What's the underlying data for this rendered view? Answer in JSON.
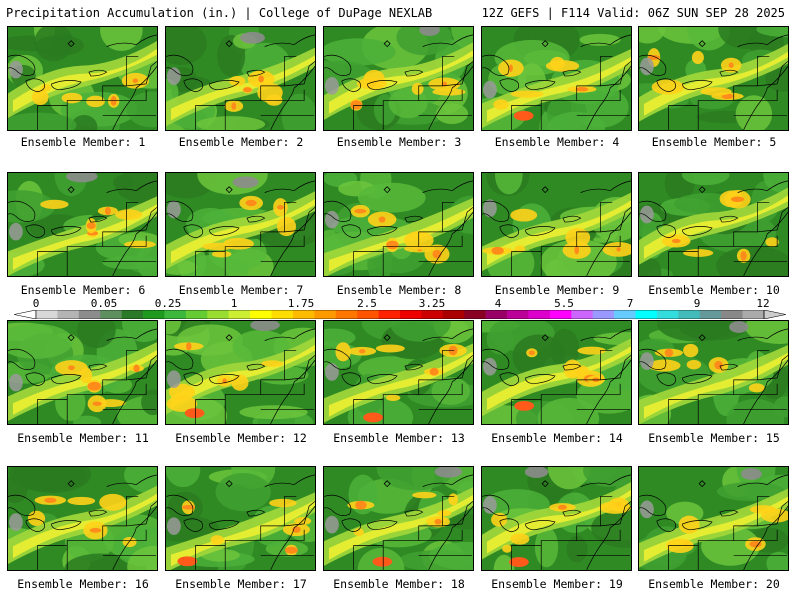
{
  "header": {
    "title": "Precipitation Accumulation (in.) | College of DuPage NEXLAB",
    "run_info": "12Z GEFS | F114 Valid: 06Z SUN SEP 28 2025"
  },
  "members": [
    {
      "label": "Ensemble Member: 1"
    },
    {
      "label": "Ensemble Member: 2"
    },
    {
      "label": "Ensemble Member: 3"
    },
    {
      "label": "Ensemble Member: 4"
    },
    {
      "label": "Ensemble Member: 5"
    },
    {
      "label": "Ensemble Member: 6"
    },
    {
      "label": "Ensemble Member: 7"
    },
    {
      "label": "Ensemble Member: 8"
    },
    {
      "label": "Ensemble Member: 9"
    },
    {
      "label": "Ensemble Member: 10"
    },
    {
      "label": "Ensemble Member: 11"
    },
    {
      "label": "Ensemble Member: 12"
    },
    {
      "label": "Ensemble Member: 13"
    },
    {
      "label": "Ensemble Member: 14"
    },
    {
      "label": "Ensemble Member: 15"
    },
    {
      "label": "Ensemble Member: 16"
    },
    {
      "label": "Ensemble Member: 17"
    },
    {
      "label": "Ensemble Member: 18"
    },
    {
      "label": "Ensemble Member: 19"
    },
    {
      "label": "Ensemble Member: 20"
    }
  ],
  "colorbar": {
    "ticks": [
      "0",
      "0.05",
      "0.25",
      "1",
      "1.75",
      "2.5",
      "3.25",
      "4",
      "5.5",
      "7",
      "9",
      "12"
    ],
    "colors": [
      "#ffffff",
      "#d8d8d8",
      "#b4b4b4",
      "#8c8c8c",
      "#5e8f5e",
      "#2a7a2a",
      "#1f9a1f",
      "#3cb83c",
      "#66cc33",
      "#99dd33",
      "#ccee33",
      "#ffff00",
      "#ffdd00",
      "#ffbb00",
      "#ff9900",
      "#ff7700",
      "#ff5500",
      "#ff2200",
      "#ee0000",
      "#cc0000",
      "#aa0000",
      "#880022",
      "#990066",
      "#bb0099",
      "#dd00cc",
      "#ff00ff",
      "#cc66ff",
      "#9999ff",
      "#66ccff",
      "#00ffff",
      "#33dddd",
      "#44bbbb",
      "#669999",
      "#888888",
      "#aaaaaa",
      "#cccccc"
    ]
  }
}
